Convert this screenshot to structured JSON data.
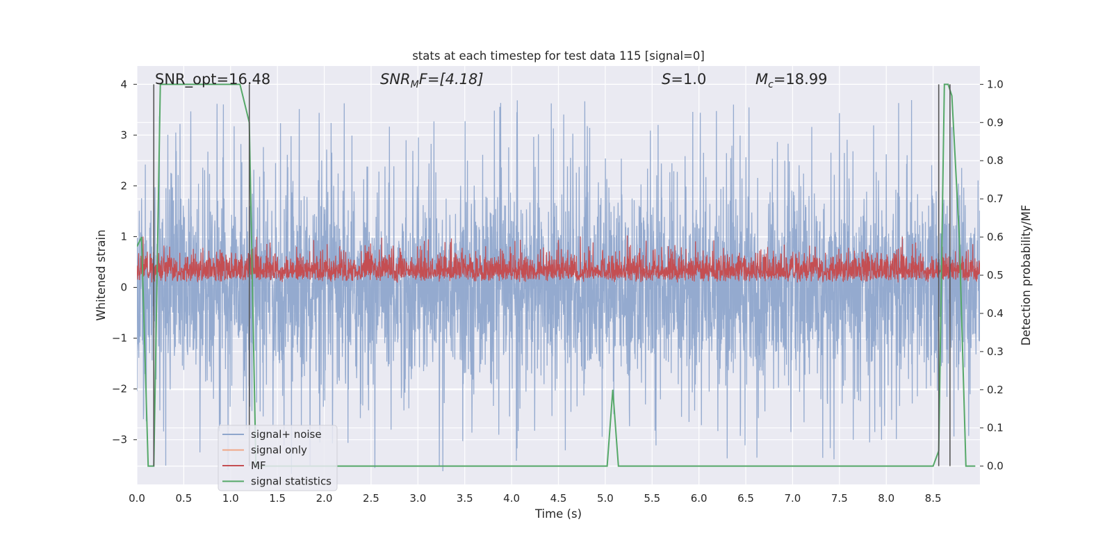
{
  "chart_data": {
    "type": "line",
    "title": "stats at each timestep for test data 115 [signal=0]",
    "xlabel": "Time (s)",
    "ylabel_left": "Whitened strain",
    "ylabel_right": "Detection probability/MF",
    "xlim": [
      0.0,
      9.0
    ],
    "ylim_left": [
      -3.88,
      4.36
    ],
    "ylim_right": [
      -0.048,
      1.048
    ],
    "xticks": [
      "0.0",
      "0.5",
      "1.0",
      "1.5",
      "2.0",
      "2.5",
      "3.0",
      "3.5",
      "4.0",
      "4.5",
      "5.0",
      "5.5",
      "6.0",
      "6.5",
      "7.0",
      "7.5",
      "8.0",
      "8.5"
    ],
    "yticks_left": [
      "4",
      "3",
      "2",
      "1",
      "0",
      "−1",
      "−2",
      "−3"
    ],
    "yticks_right": [
      "1.0",
      "0.9",
      "0.8",
      "0.7",
      "0.6",
      "0.5",
      "0.4",
      "0.3",
      "0.2",
      "0.1",
      "0.0"
    ],
    "grid": true,
    "legend_position": "lower-left",
    "annotations": {
      "snr_opt": "SNR_opt=16.48",
      "snr_mf_sym": "SNR",
      "snr_mf_sub": "M",
      "snr_mf_rest": "F=[4.18]",
      "s_sym": "S",
      "s_rest": "=1.0",
      "mc_sym": "M",
      "mc_sub": "c",
      "mc_rest": "=18.99"
    },
    "series": [
      {
        "name": "signal+ noise",
        "axis": "left",
        "color": "#8fa6cc",
        "style": "dense noise between approximately -2.1 and +2.1 with spikes to about +/-3.7",
        "noise_sigma": 1.0,
        "spike_max": 3.7
      },
      {
        "name": "signal only",
        "axis": "left",
        "color": "#f0a787",
        "x": [],
        "y": []
      },
      {
        "name": "MF",
        "axis": "right",
        "color": "#c44e52",
        "style": "dense trace between about 0.48 and 0.58, peaks near 0.6",
        "base": 0.48,
        "max": 0.605
      },
      {
        "name": "signal statistics",
        "axis": "right",
        "color": "#55a868",
        "x": [
          0.0,
          0.05,
          0.12,
          0.18,
          0.25,
          0.3,
          0.95,
          1.1,
          1.2,
          1.27,
          1.33,
          1.4,
          4.95,
          5.02,
          5.08,
          5.14,
          8.5,
          8.56,
          8.62,
          8.66,
          8.7,
          8.78,
          8.85,
          8.95
        ],
        "y": [
          0.575,
          0.6,
          0.0,
          0.0,
          1.0,
          1.0,
          1.0,
          1.0,
          0.9,
          0.0,
          0.0,
          0.0,
          0.0,
          0.0,
          0.2,
          0.0,
          0.0,
          0.04,
          1.0,
          1.0,
          0.97,
          0.6,
          0.0,
          0.0
        ]
      }
    ],
    "vlines": [
      0.18,
      1.2,
      8.56,
      8.68
    ],
    "vline_color": "#555555"
  },
  "legend": {
    "items": [
      {
        "label": "signal+ noise",
        "color": "#8fa6cc"
      },
      {
        "label": "signal only",
        "color": "#f0a787"
      },
      {
        "label": "MF",
        "color": "#c44e52"
      },
      {
        "label": "signal statistics",
        "color": "#55a868"
      }
    ]
  }
}
